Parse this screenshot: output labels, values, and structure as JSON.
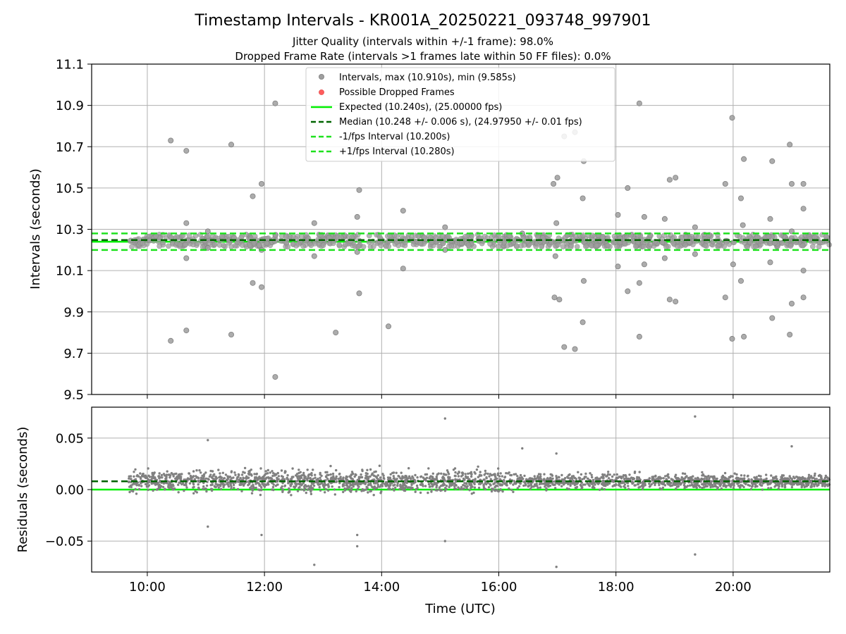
{
  "title": "Timestamp Intervals - KR001A_20250221_093748_997901",
  "subtitle_lines": [
    "Jitter Quality (intervals within +/-1 frame): 98.0%",
    "Dropped Frame Rate (intervals >1 frames late within 50 FF files): 0.0%"
  ],
  "colors": {
    "intervals": "#9e9e9e",
    "intervals_edge": "#7f7f7f",
    "dropped": "#ff5c5c",
    "expected": "#00ee00",
    "median": "#006400",
    "interval_bounds": "#1ee11e",
    "residual_points": "#808080",
    "grid": "#b0b0b0"
  },
  "chart_data": [
    {
      "type": "scatter",
      "name": "intervals",
      "xlabel": "",
      "ylabel": "Intervals (seconds)",
      "xlim": [
        "09:03",
        "21:39"
      ],
      "ylim": [
        9.5,
        11.1
      ],
      "yticks": [
        "9.5",
        "9.7",
        "9.9",
        "10.1",
        "10.3",
        "10.5",
        "10.7",
        "10.9",
        "11.1"
      ],
      "xticks": [
        "10:00",
        "12:00",
        "14:00",
        "16:00",
        "18:00",
        "20:00"
      ],
      "grid": true,
      "legend_position": "top-center",
      "legend": [
        {
          "label": "Intervals, max (10.910s), min (9.585s)",
          "kind": "marker",
          "color": "#9e9e9e"
        },
        {
          "label": "Possible Dropped Frames",
          "kind": "marker",
          "color": "#ff5c5c"
        },
        {
          "label": "Expected (10.240s), (25.00000 fps)",
          "kind": "solid",
          "color": "#00ee00"
        },
        {
          "label": "Median (10.248 +/- 0.006 s), (24.97950 +/- 0.01 fps)",
          "kind": "dashed",
          "color": "#006400"
        },
        {
          "label": "-1/fps Interval (10.200s)",
          "kind": "dashed",
          "color": "#1ee11e"
        },
        {
          "label": "+1/fps Interval (10.280s)",
          "kind": "dashed",
          "color": "#1ee11e"
        }
      ],
      "reference_lines": [
        {
          "name": "Expected",
          "y": 10.24,
          "style": "solid",
          "color": "#00ee00"
        },
        {
          "name": "Median",
          "y": 10.248,
          "style": "dashed",
          "color": "#006400"
        },
        {
          "name": "-1/fps Interval",
          "y": 10.2,
          "style": "dashed",
          "color": "#1ee11e"
        },
        {
          "name": "+1/fps Interval",
          "y": 10.28,
          "style": "dashed",
          "color": "#1ee11e"
        }
      ],
      "dense_band": {
        "x_range": [
          "09:41",
          "21:39"
        ],
        "y_min": 10.215,
        "y_max": 10.275
      },
      "outliers": [
        [
          "10:24",
          10.73
        ],
        [
          "10:24",
          9.76
        ],
        [
          "10:40",
          10.68
        ],
        [
          "10:40",
          10.33
        ],
        [
          "10:40",
          10.16
        ],
        [
          "10:40",
          9.81
        ],
        [
          "11:02",
          10.29
        ],
        [
          "11:02",
          10.21
        ],
        [
          "11:26",
          10.71
        ],
        [
          "11:26",
          9.79
        ],
        [
          "11:48",
          10.46
        ],
        [
          "11:48",
          10.04
        ],
        [
          "11:57",
          10.52
        ],
        [
          "11:57",
          10.2
        ],
        [
          "11:57",
          10.02
        ],
        [
          "12:11",
          10.91
        ],
        [
          "12:11",
          9.585
        ],
        [
          "12:51",
          10.33
        ],
        [
          "12:51",
          10.17
        ],
        [
          "13:13",
          9.8
        ],
        [
          "13:35",
          10.36
        ],
        [
          "13:37",
          10.49
        ],
        [
          "13:35",
          10.19
        ],
        [
          "13:37",
          9.99
        ],
        [
          "14:07",
          9.83
        ],
        [
          "14:22",
          10.39
        ],
        [
          "14:22",
          10.11
        ],
        [
          "15:05",
          10.31
        ],
        [
          "15:05",
          10.2
        ],
        [
          "16:24",
          10.28
        ],
        [
          "16:56",
          10.52
        ],
        [
          "17:00",
          10.55
        ],
        [
          "16:59",
          10.33
        ],
        [
          "16:58",
          10.17
        ],
        [
          "16:57",
          9.97
        ],
        [
          "17:02",
          9.96
        ],
        [
          "17:07",
          10.75
        ],
        [
          "17:18",
          10.77
        ],
        [
          "17:07",
          9.73
        ],
        [
          "17:18",
          9.72
        ],
        [
          "17:27",
          10.63
        ],
        [
          "17:26",
          10.45
        ],
        [
          "17:27",
          10.05
        ],
        [
          "17:26",
          9.85
        ],
        [
          "18:02",
          10.37
        ],
        [
          "18:02",
          10.12
        ],
        [
          "18:12",
          10.5
        ],
        [
          "18:12",
          10.0
        ],
        [
          "18:24",
          10.91
        ],
        [
          "18:24",
          10.04
        ],
        [
          "18:24",
          9.78
        ],
        [
          "18:29",
          10.36
        ],
        [
          "18:29",
          10.13
        ],
        [
          "18:50",
          10.35
        ],
        [
          "18:50",
          10.16
        ],
        [
          "18:55",
          10.54
        ],
        [
          "19:01",
          10.55
        ],
        [
          "18:55",
          9.96
        ],
        [
          "19:01",
          9.95
        ],
        [
          "19:21",
          10.31
        ],
        [
          "19:21",
          10.18
        ],
        [
          "19:52",
          10.52
        ],
        [
          "19:52",
          9.97
        ],
        [
          "19:59",
          10.84
        ],
        [
          "20:00",
          10.13
        ],
        [
          "19:59",
          9.77
        ],
        [
          "20:08",
          10.45
        ],
        [
          "20:11",
          10.64
        ],
        [
          "20:10",
          10.32
        ],
        [
          "20:08",
          10.05
        ],
        [
          "20:11",
          9.78
        ],
        [
          "20:38",
          10.35
        ],
        [
          "20:40",
          10.63
        ],
        [
          "20:38",
          10.14
        ],
        [
          "20:40",
          9.87
        ],
        [
          "20:58",
          10.71
        ],
        [
          "21:00",
          10.52
        ],
        [
          "21:00",
          10.29
        ],
        [
          "20:58",
          9.79
        ],
        [
          "21:00",
          9.94
        ],
        [
          "21:12",
          10.52
        ],
        [
          "21:12",
          10.4
        ],
        [
          "21:12",
          10.1
        ],
        [
          "21:12",
          9.97
        ]
      ]
    },
    {
      "type": "scatter",
      "name": "residuals",
      "xlabel": "Time (UTC)",
      "ylabel": "Residuals (seconds)",
      "xlim": [
        "09:03",
        "21:39"
      ],
      "ylim": [
        -0.08,
        0.08
      ],
      "yticks": [
        "−0.05",
        "0.00",
        "0.05"
      ],
      "yticks_values": [
        -0.05,
        0.0,
        0.05
      ],
      "xticks": [
        "10:00",
        "12:00",
        "14:00",
        "16:00",
        "18:00",
        "20:00"
      ],
      "grid": true,
      "reference_lines": [
        {
          "name": "Median",
          "y": 0.008,
          "style": "dashed",
          "color": "#006400"
        },
        {
          "name": "Expected",
          "y": 0.0,
          "style": "solid",
          "color": "#00ee00"
        }
      ],
      "dense_band": {
        "x_range": [
          "09:41",
          "21:39"
        ],
        "center": 0.008,
        "spread": 0.012
      },
      "outliers": [
        [
          "11:02",
          0.048
        ],
        [
          "11:02",
          -0.036
        ],
        [
          "11:57",
          -0.044
        ],
        [
          "12:51",
          -0.073
        ],
        [
          "13:35",
          -0.044
        ],
        [
          "13:35",
          -0.055
        ],
        [
          "15:05",
          0.069
        ],
        [
          "15:05",
          -0.05
        ],
        [
          "16:24",
          0.04
        ],
        [
          "16:59",
          0.035
        ],
        [
          "16:59",
          -0.075
        ],
        [
          "19:21",
          0.071
        ],
        [
          "19:21",
          -0.063
        ],
        [
          "21:00",
          0.042
        ]
      ]
    }
  ]
}
